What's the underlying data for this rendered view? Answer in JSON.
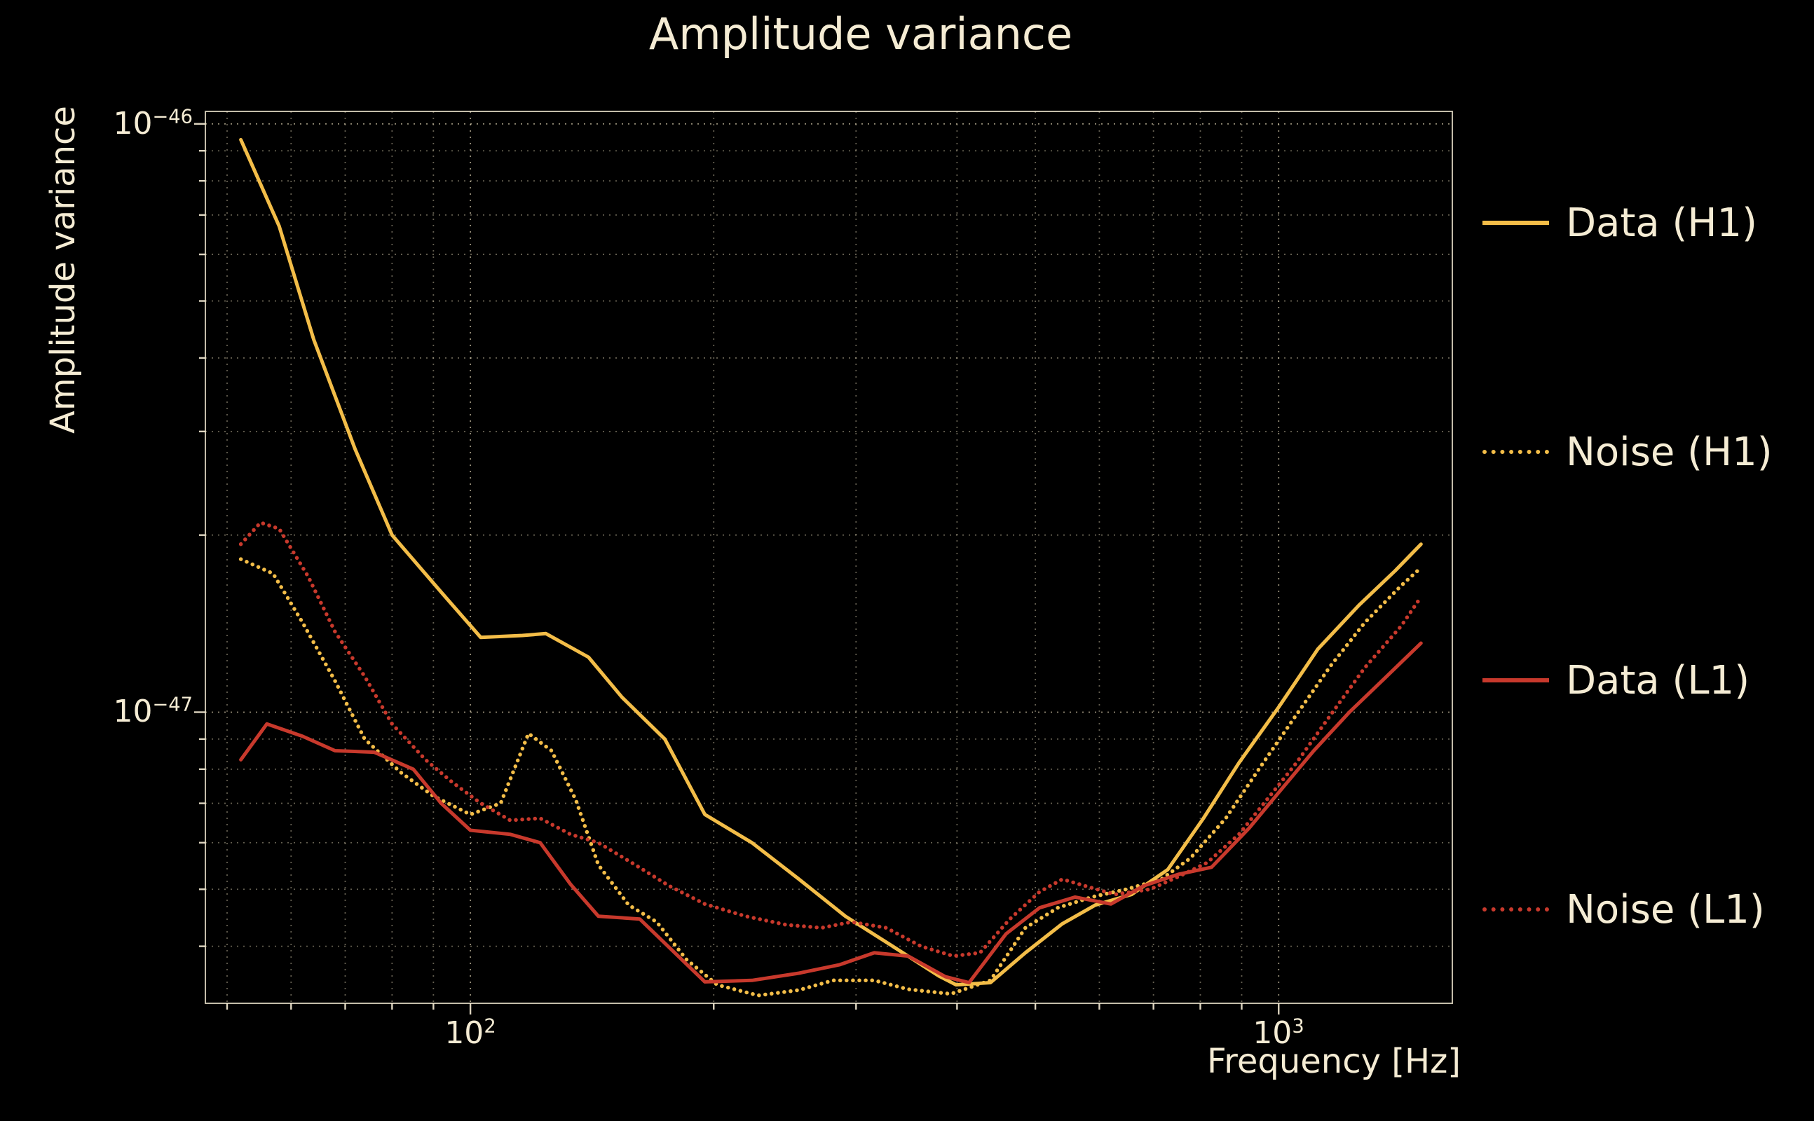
{
  "chart_data": {
    "type": "line",
    "title": "Amplitude variance",
    "xlabel": "Frequency [Hz]",
    "ylabel": "Amplitude variance",
    "x_scale": "log",
    "y_scale": "log",
    "grid": "major and minor, dotted",
    "legend_position": "outside right",
    "xlim": [
      47,
      1640
    ],
    "ylim": [
      3.2e-48,
      1.05e-46
    ],
    "x_ticks": [
      {
        "base": "10",
        "exp": "2"
      },
      {
        "base": "10",
        "exp": "3"
      }
    ],
    "y_ticks": [
      {
        "base": "10",
        "exp": "−46"
      },
      {
        "base": "10",
        "exp": "−47"
      }
    ],
    "colors": {
      "background": "#000000",
      "text": "#f5ecd4",
      "grid": "#efe2c0",
      "gold": "#f3bd48",
      "red": "#c8392c"
    },
    "series": [
      {
        "name": "Data (H1)",
        "style": "solid",
        "color": "#f3bd48",
        "points": [
          [
            52,
            9.4e-47
          ],
          [
            58,
            6.7e-47
          ],
          [
            64,
            4.3e-47
          ],
          [
            72,
            2.8e-47
          ],
          [
            80,
            2e-47
          ],
          [
            92,
            1.6e-47
          ],
          [
            103,
            1.34e-47
          ],
          [
            116,
            1.35e-47
          ],
          [
            124,
            1.36e-47
          ],
          [
            140,
            1.24e-47
          ],
          [
            154,
            1.06e-47
          ],
          [
            174,
            9e-48
          ],
          [
            195,
            6.7e-48
          ],
          [
            223,
            6e-48
          ],
          [
            255,
            5.2e-48
          ],
          [
            291,
            4.5e-48
          ],
          [
            333,
            4e-48
          ],
          [
            380,
            3.56e-48
          ],
          [
            399,
            3.44e-48
          ],
          [
            440,
            3.47e-48
          ],
          [
            486,
            3.9e-48
          ],
          [
            540,
            4.37e-48
          ],
          [
            593,
            4.7e-48
          ],
          [
            658,
            4.9e-48
          ],
          [
            729,
            5.4e-48
          ],
          [
            807,
            6.6e-48
          ],
          [
            893,
            8.2e-48
          ],
          [
            1000,
            1.02e-47
          ],
          [
            1118,
            1.28e-47
          ],
          [
            1257,
            1.52e-47
          ],
          [
            1394,
            1.74e-47
          ],
          [
            1500,
            1.93e-47
          ]
        ]
      },
      {
        "name": "Noise (H1)",
        "style": "dotted",
        "color": "#f3bd48",
        "points": [
          [
            52,
            1.82e-47
          ],
          [
            57,
            1.72e-47
          ],
          [
            62,
            1.42e-47
          ],
          [
            68,
            1.13e-47
          ],
          [
            74,
            9e-48
          ],
          [
            82,
            7.9e-48
          ],
          [
            90,
            7.2e-48
          ],
          [
            100,
            6.7e-48
          ],
          [
            109,
            7e-48
          ],
          [
            118,
            9.2e-48
          ],
          [
            126,
            8.6e-48
          ],
          [
            135,
            7.1e-48
          ],
          [
            144,
            5.5e-48
          ],
          [
            157,
            4.7e-48
          ],
          [
            170,
            4.4e-48
          ],
          [
            185,
            3.8e-48
          ],
          [
            202,
            3.44e-48
          ],
          [
            227,
            3.3e-48
          ],
          [
            255,
            3.37e-48
          ],
          [
            281,
            3.5e-48
          ],
          [
            316,
            3.5e-48
          ],
          [
            348,
            3.38e-48
          ],
          [
            393,
            3.32e-48
          ],
          [
            440,
            3.5e-48
          ],
          [
            486,
            4.3e-48
          ],
          [
            533,
            4.65e-48
          ],
          [
            587,
            4.85e-48
          ],
          [
            648,
            5e-48
          ],
          [
            716,
            5.2e-48
          ],
          [
            778,
            5.65e-48
          ],
          [
            860,
            6.6e-48
          ],
          [
            951,
            8.1e-48
          ],
          [
            1052,
            9.9e-48
          ],
          [
            1160,
            1.2e-47
          ],
          [
            1278,
            1.42e-47
          ],
          [
            1417,
            1.64e-47
          ],
          [
            1500,
            1.76e-47
          ]
        ]
      },
      {
        "name": "Data (L1)",
        "style": "solid",
        "color": "#c8392c",
        "points": [
          [
            52,
            8.3e-48
          ],
          [
            56,
            9.55e-48
          ],
          [
            62,
            9.1e-48
          ],
          [
            68,
            8.6e-48
          ],
          [
            76,
            8.55e-48
          ],
          [
            85,
            8e-48
          ],
          [
            92,
            7e-48
          ],
          [
            100,
            6.3e-48
          ],
          [
            112,
            6.2e-48
          ],
          [
            122,
            6e-48
          ],
          [
            133,
            5.1e-48
          ],
          [
            144,
            4.5e-48
          ],
          [
            162,
            4.45e-48
          ],
          [
            179,
            3.9e-48
          ],
          [
            195,
            3.48e-48
          ],
          [
            223,
            3.5e-48
          ],
          [
            255,
            3.6e-48
          ],
          [
            286,
            3.72e-48
          ],
          [
            316,
            3.9e-48
          ],
          [
            348,
            3.85e-48
          ],
          [
            387,
            3.55e-48
          ],
          [
            414,
            3.47e-48
          ],
          [
            460,
            4.2e-48
          ],
          [
            506,
            4.65e-48
          ],
          [
            560,
            4.85e-48
          ],
          [
            620,
            4.72e-48
          ],
          [
            681,
            5.07e-48
          ],
          [
            751,
            5.3e-48
          ],
          [
            826,
            5.45e-48
          ],
          [
            919,
            6.35e-48
          ],
          [
            1000,
            7.3e-48
          ],
          [
            1105,
            8.6e-48
          ],
          [
            1223,
            1e-47
          ],
          [
            1351,
            1.14e-47
          ],
          [
            1500,
            1.31e-47
          ]
        ]
      },
      {
        "name": "Noise (L1)",
        "style": "dotted",
        "color": "#c8392c",
        "points": [
          [
            52,
            1.93e-47
          ],
          [
            55,
            2.1e-47
          ],
          [
            58,
            2.05e-47
          ],
          [
            63,
            1.7e-47
          ],
          [
            68,
            1.37e-47
          ],
          [
            74,
            1.15e-47
          ],
          [
            80,
            9.55e-48
          ],
          [
            88,
            8.3e-48
          ],
          [
            95,
            7.6e-48
          ],
          [
            103,
            7e-48
          ],
          [
            112,
            6.55e-48
          ],
          [
            122,
            6.6e-48
          ],
          [
            133,
            6.2e-48
          ],
          [
            144,
            6e-48
          ],
          [
            160,
            5.5e-48
          ],
          [
            176,
            5.07e-48
          ],
          [
            195,
            4.72e-48
          ],
          [
            219,
            4.5e-48
          ],
          [
            246,
            4.35e-48
          ],
          [
            272,
            4.3e-48
          ],
          [
            296,
            4.4e-48
          ],
          [
            327,
            4.3e-48
          ],
          [
            361,
            4e-48
          ],
          [
            396,
            3.85e-48
          ],
          [
            427,
            3.9e-48
          ],
          [
            465,
            4.45e-48
          ],
          [
            506,
            4.95e-48
          ],
          [
            540,
            5.2e-48
          ],
          [
            575,
            5.07e-48
          ],
          [
            627,
            4.9e-48
          ],
          [
            693,
            5e-48
          ],
          [
            751,
            5.25e-48
          ],
          [
            816,
            5.55e-48
          ],
          [
            893,
            6.2e-48
          ],
          [
            971,
            7.15e-48
          ],
          [
            1052,
            8.2e-48
          ],
          [
            1160,
            9.9e-48
          ],
          [
            1278,
            1.19e-47
          ],
          [
            1417,
            1.4e-47
          ],
          [
            1500,
            1.57e-47
          ]
        ]
      }
    ]
  }
}
